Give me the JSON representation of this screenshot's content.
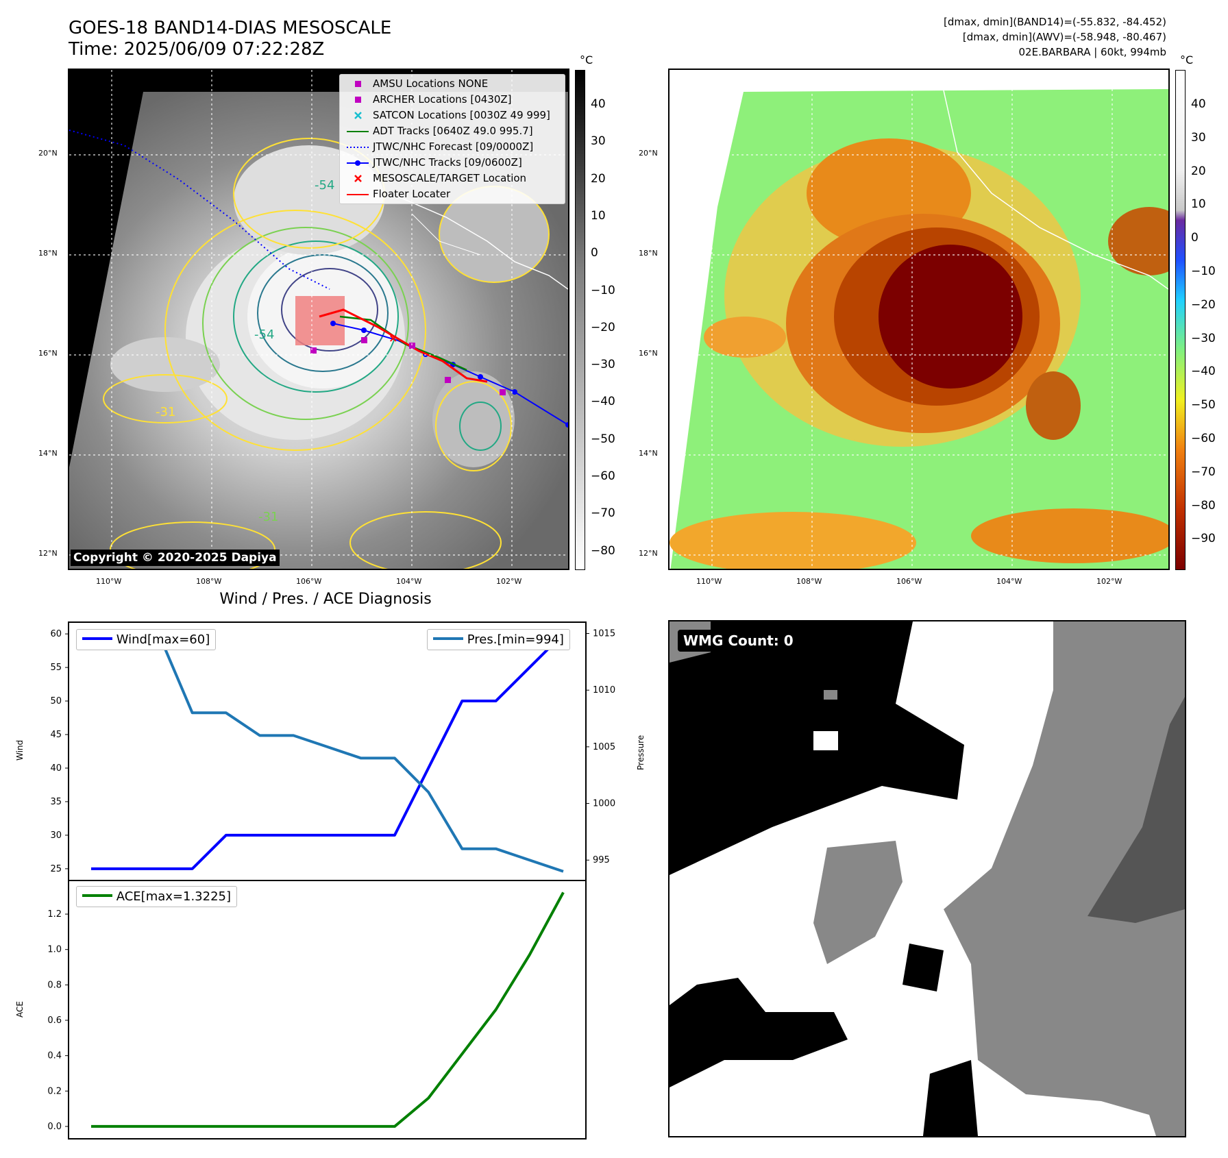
{
  "header": {
    "title": "GOES-18 BAND14-DIAS MESOSCALE",
    "time": "Time: 2025/06/09 07:22:28Z",
    "meta1": "[dmax, dmin](BAND14)=(-55.832, -84.452)",
    "meta2": "[dmax, dmin](AWV)=(-58.948, -80.467)",
    "meta3": "02E.BARBARA | 60kt, 994mb"
  },
  "map": {
    "lat_labels": [
      "20°N",
      "18°N",
      "16°N",
      "14°N",
      "12°N"
    ],
    "lon_labels": [
      "110°W",
      "108°W",
      "106°W",
      "104°W",
      "102°W"
    ],
    "copyright": "Copyright © 2020-2025 Dapiya",
    "unit": "°C",
    "contour_labels": [
      "-54",
      "-54",
      "-31",
      "-31"
    ],
    "legend": [
      {
        "label": "AMSU Locations NONE",
        "marker": "square",
        "color": "#c000c0"
      },
      {
        "label": "ARCHER Locations [0430Z]",
        "marker": "square",
        "color": "#c000c0"
      },
      {
        "label": "SATCON Locations [0030Z 49 999]",
        "marker": "x",
        "color": "#17becf"
      },
      {
        "label": "ADT Tracks [0640Z 49.0 995.7]",
        "marker": "line",
        "color": "#008000"
      },
      {
        "label": "JTWC/NHC Forecast [09/0000Z]",
        "marker": "dotted",
        "color": "#0000ff"
      },
      {
        "label": "JTWC/NHC Tracks [09/0600Z]",
        "marker": "line-dot",
        "color": "#0000ff"
      },
      {
        "label": "MESOSCALE/TARGET Location",
        "marker": "x",
        "color": "#ff0000"
      },
      {
        "label": "Floater Locater",
        "marker": "line",
        "color": "#ff0000"
      }
    ]
  },
  "colorbar_left": {
    "unit": "°C",
    "ticks": [
      "40",
      "30",
      "20",
      "10",
      "0",
      "−10",
      "−20",
      "−30",
      "−40",
      "−50",
      "−60",
      "−70",
      "−80"
    ]
  },
  "colorbar_right": {
    "unit": "°C",
    "ticks": [
      "40",
      "30",
      "20",
      "10",
      "0",
      "−10",
      "−20",
      "−30",
      "−40",
      "−50",
      "−60",
      "−70",
      "−80",
      "−90"
    ]
  },
  "colors": {
    "wind": "#0000ff",
    "pressure": "#1f77b4",
    "ace": "#008000"
  },
  "chart_data": [
    {
      "type": "line",
      "title": "Wind / Pres. / ACE Diagnosis",
      "ylabel": "Wind",
      "y2label": "Pressure",
      "x": [
        0,
        1,
        2,
        3,
        4,
        5,
        6,
        7,
        8,
        9,
        10,
        11,
        12,
        13,
        14
      ],
      "ylim": [
        23.25,
        61.75
      ],
      "y2lim": [
        993.2,
        1016.0
      ],
      "yticks": [
        25,
        30,
        35,
        40,
        45,
        50,
        55,
        60
      ],
      "y2ticks": [
        995,
        1000,
        1005,
        1010,
        1015
      ],
      "series": [
        {
          "name": "Wind[max=60]",
          "axis": "left",
          "values": [
            25,
            25,
            25,
            25,
            30,
            30,
            30,
            30,
            30,
            30,
            40,
            50,
            50,
            55,
            60
          ]
        },
        {
          "name": "Pres.[min=994]",
          "axis": "right",
          "values": [
            1015,
            1015,
            1015,
            1008,
            1008,
            1006,
            1006,
            1005,
            1004,
            1004,
            1001,
            996,
            996,
            995,
            994
          ]
        }
      ]
    },
    {
      "type": "line",
      "ylabel": "ACE",
      "x": [
        0,
        1,
        2,
        3,
        4,
        5,
        6,
        7,
        8,
        9,
        10,
        11,
        12,
        13,
        14
      ],
      "ylim": [
        -0.07,
        1.39
      ],
      "yticks": [
        0.0,
        0.2,
        0.4,
        0.6,
        0.8,
        1.0,
        1.2
      ],
      "ytick_labels": [
        "0.0",
        "0.2",
        "0.4",
        "0.6",
        "0.8",
        "1.0",
        "1.2"
      ],
      "series": [
        {
          "name": "ACE[max=1.3225]",
          "values": [
            0,
            0,
            0,
            0,
            0,
            0,
            0,
            0,
            0,
            0,
            0.16,
            0.41,
            0.66,
            0.97,
            1.3225
          ]
        }
      ]
    }
  ],
  "wmg": {
    "label": "WMG Count: 0"
  }
}
